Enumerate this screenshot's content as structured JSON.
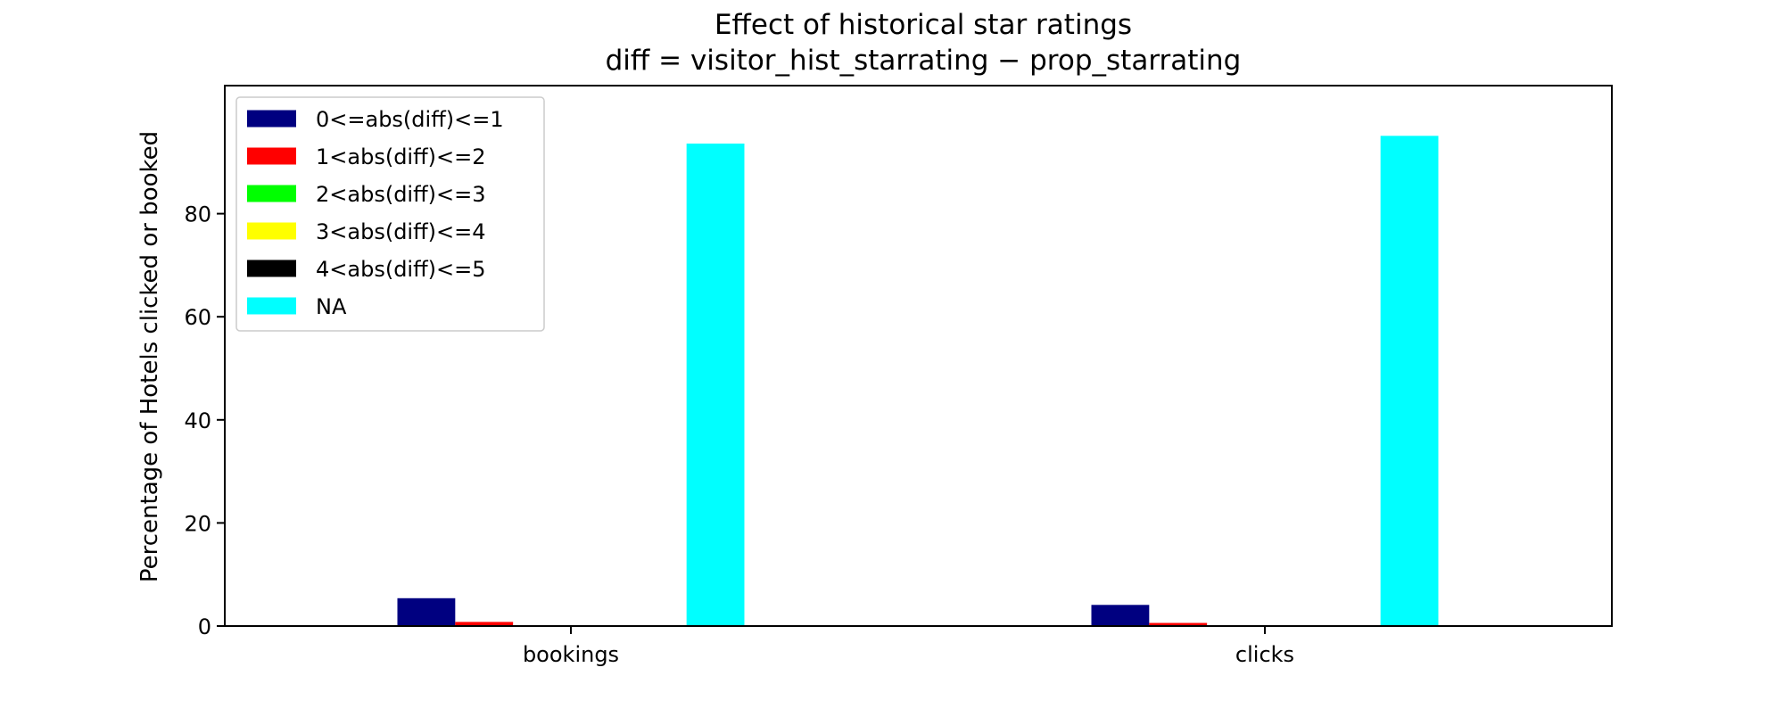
{
  "chart_data": {
    "type": "bar",
    "title": "Effect of historical star ratings",
    "subtitle": "diff  =  visitor_hist_starrating − prop_starrating",
    "xlabel": "",
    "ylabel": "Percentage of Hotels clicked or booked",
    "categories": [
      "bookings",
      "clicks"
    ],
    "ylim": [
      0,
      100
    ],
    "yticks": [
      0,
      20,
      40,
      60,
      80
    ],
    "grid": false,
    "legend_position": "top-left",
    "series": [
      {
        "name": "0<=abs(diff)<=1",
        "color": "#000080",
        "values": [
          5.4,
          4.1
        ]
      },
      {
        "name": "1<abs(diff)<=2",
        "color": "#ff0000",
        "values": [
          0.8,
          0.6
        ]
      },
      {
        "name": "2<abs(diff)<=3",
        "color": "#00ff00",
        "values": [
          0.05,
          0.05
        ]
      },
      {
        "name": "3<abs(diff)<=4",
        "color": "#ffff00",
        "values": [
          0.02,
          0.02
        ]
      },
      {
        "name": "4<abs(diff)<=5",
        "color": "#000000",
        "values": [
          0.01,
          0.01
        ]
      },
      {
        "name": "NA",
        "color": "#00ffff",
        "values": [
          93.6,
          95.1
        ]
      }
    ]
  }
}
